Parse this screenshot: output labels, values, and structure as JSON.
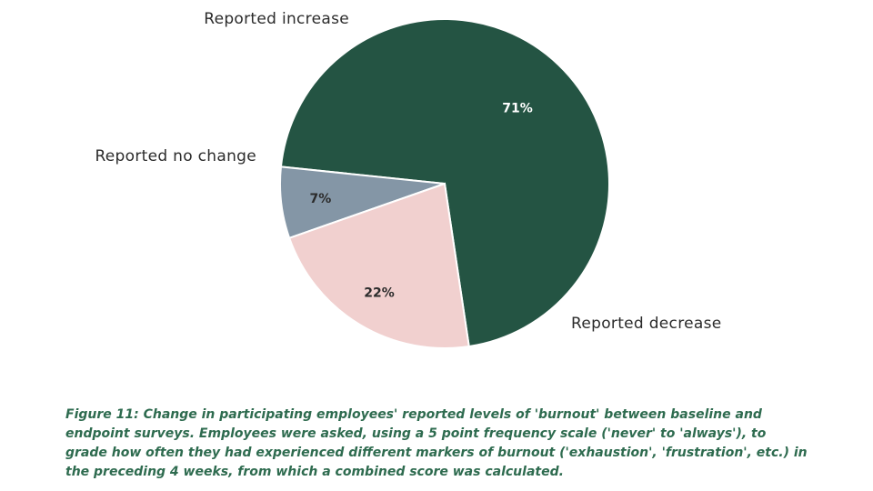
{
  "chart_data": {
    "type": "pie",
    "categories": [
      "Reported decrease",
      "Reported no change",
      "Reported increase"
    ],
    "values": [
      71,
      7,
      22
    ],
    "value_labels": [
      "71%",
      "7%",
      "22%"
    ],
    "colors": [
      "#245443",
      "#8496a6",
      "#f1d0cf"
    ],
    "label_colors": [
      "#ffffff",
      "#2b2b2b",
      "#2b2b2b"
    ],
    "title": ""
  },
  "caption": "Figure 11: Change in participating employees' reported levels of 'burnout' between baseline and endpoint surveys. Employees were asked, using a 5 point frequency scale ('never' to 'always'), to grade how often they had experienced different markers of burnout ('exhaustion', 'frustration', etc.) in the preceding 4 weeks, from which a combined score was calculated."
}
